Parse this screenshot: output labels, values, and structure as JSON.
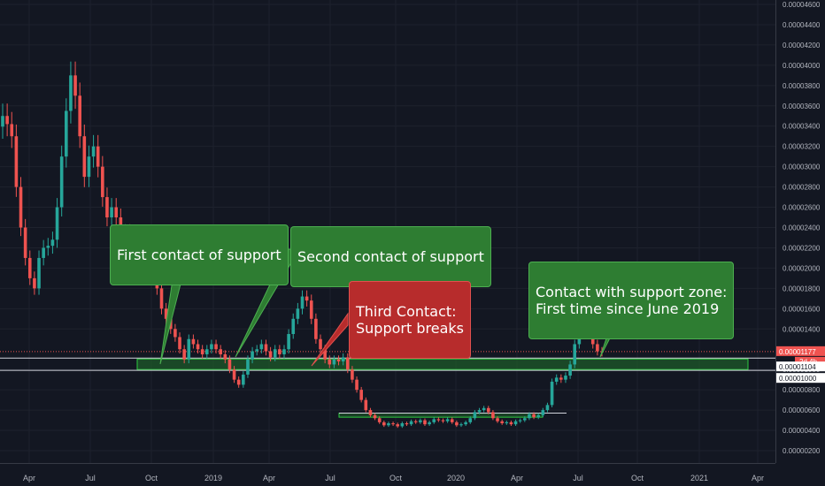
{
  "chart_data": {
    "type": "candlestick",
    "x_ticks": [
      "Apr",
      "Jul",
      "Oct",
      "2019",
      "Apr",
      "Jul",
      "Oct",
      "2020",
      "Apr",
      "Jul",
      "Oct",
      "2021",
      "Apr"
    ],
    "y_ticks": [
      "0.00004600",
      "0.00004400",
      "0.00004200",
      "0.00004000",
      "0.00003800",
      "0.00003600",
      "0.00003400",
      "0.00003200",
      "0.00003000",
      "0.00002800",
      "0.00002600",
      "0.00002400",
      "0.00002200",
      "0.00002000",
      "0.00001800",
      "0.00001600",
      "0.00001400",
      "0.00001000",
      "0.00000800",
      "0.00000600",
      "0.00000400",
      "0.00000200"
    ],
    "ylim": [
      1.6e-06,
      4.61e-05
    ],
    "price_labels": {
      "last": "0.00001177",
      "countdown": "2d 4h",
      "zone_top": "0.00001104",
      "zone_bottom": "0.00001000"
    },
    "support_zone": {
      "from": 1e-05,
      "to": 1.104e-05
    },
    "consolidation_band": {
      "from": 5.3e-06,
      "to": 5.7e-06
    },
    "annotations": [
      {
        "text": "First contact of support",
        "style": "green"
      },
      {
        "text": "Second contact of support",
        "style": "green"
      },
      {
        "text": "Third Contact:\nSupport breaks",
        "style": "red"
      },
      {
        "text": "Contact with support zone:\nFirst time since June 2019",
        "style": "green"
      }
    ],
    "series": [
      {
        "values": [
          3.5e-05,
          3.42e-05,
          3.3e-05,
          2.8e-05,
          2.4e-05,
          2.1e-05,
          1.9e-05,
          1.8e-05,
          2.1e-05,
          2.2e-05,
          2.22e-05,
          2.28e-05,
          2.6e-05,
          3.1e-05,
          3.55e-05,
          3.9e-05,
          3.7e-05,
          3.3e-05,
          2.9e-05,
          3.1e-05,
          3.2e-05,
          3e-05,
          2.7e-05,
          2.5e-05,
          2.6e-05,
          2.5e-05,
          2.2e-05,
          2.35e-05,
          2.3e-05,
          2.2e-05,
          2.3e-05,
          2.15e-05,
          2e-05,
          1.9e-05,
          1.8e-05,
          1.6e-05,
          1.5e-05,
          1.4e-05,
          1.32e-05,
          1.2e-05,
          1.1e-05,
          1.3e-05,
          1.25e-05,
          1.2e-05,
          1.15e-05,
          1.2e-05,
          1.25e-05,
          1.2e-05,
          1.15e-05,
          1.1e-05,
          1e-05,
          9e-06,
          8.5e-06,
          9.5e-06,
          1.1e-05,
          1.18e-05,
          1.2e-05,
          1.25e-05,
          1.18e-05,
          1.12e-05,
          1.2e-05,
          1.15e-05,
          1.2e-05,
          1.35e-05,
          1.5e-05,
          1.6e-05,
          1.72e-05,
          1.68e-05,
          1.5e-05,
          1.3e-05,
          1.2e-05,
          1.1e-05,
          1.05e-05,
          1.1e-05,
          1.08e-05,
          1.12e-05,
          1e-05,
          9e-06,
          8e-06,
          7e-06,
          6e-06,
          5.5e-06,
          5.2e-06,
          4.8e-06,
          4.5e-06,
          4.7e-06,
          4.6e-06,
          4.4e-06,
          4.7e-06,
          4.6e-06,
          4.9e-06,
          4.8e-06,
          5e-06,
          4.6e-06,
          4.8e-06,
          5.1e-06,
          5e-06,
          4.9e-06,
          5.1e-06,
          4.8e-06,
          4.5e-06,
          4.6e-06,
          4.8e-06,
          5.2e-06,
          5.8e-06,
          6e-06,
          6.2e-06,
          5.8e-06,
          5.2e-06,
          4.9e-06,
          4.7e-06,
          4.8e-06,
          4.6e-06,
          4.9e-06,
          5e-06,
          5.2e-06,
          5.6e-06,
          5.3e-06,
          5.5e-06,
          6e-06,
          6.5e-06,
          8.8e-06,
          9.2e-06,
          9e-06,
          9.4e-06,
          1.05e-05,
          1.25e-05,
          1.45e-05,
          1.52e-05,
          1.38e-05,
          1.25e-05,
          1.18e-05,
          1.17e-05
        ]
      }
    ]
  }
}
